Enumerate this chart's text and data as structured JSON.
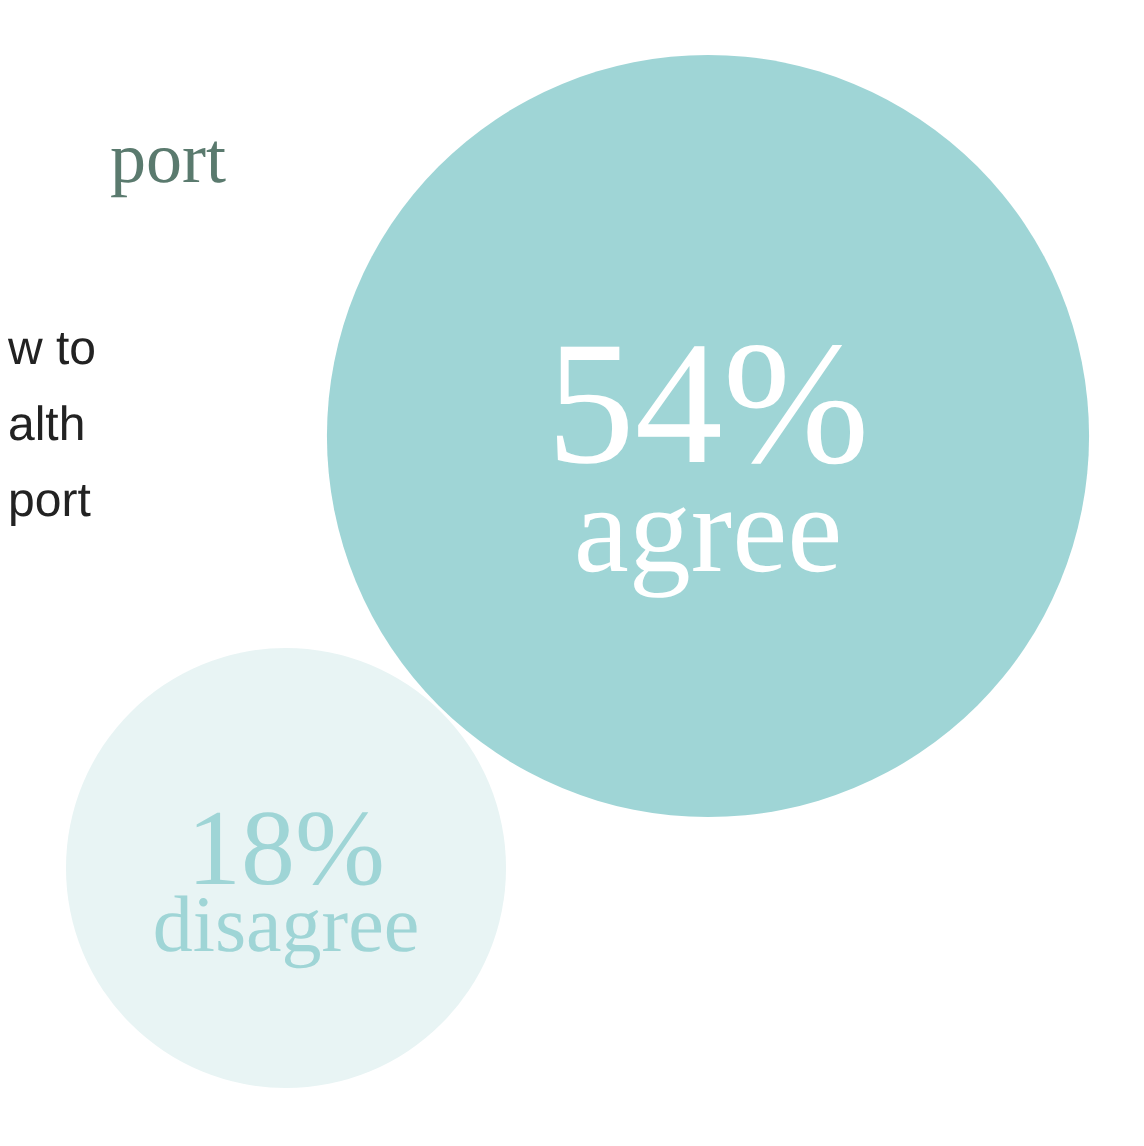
{
  "chart_data": {
    "type": "other",
    "title": "port",
    "subtitle": "w to\nalth\nport",
    "categories": [
      "agree",
      "disagree"
    ],
    "values": [
      54,
      18
    ],
    "value_labels": [
      "54%",
      "18%"
    ],
    "colors": [
      "#9fd5d6",
      "#e8f4f4"
    ]
  }
}
